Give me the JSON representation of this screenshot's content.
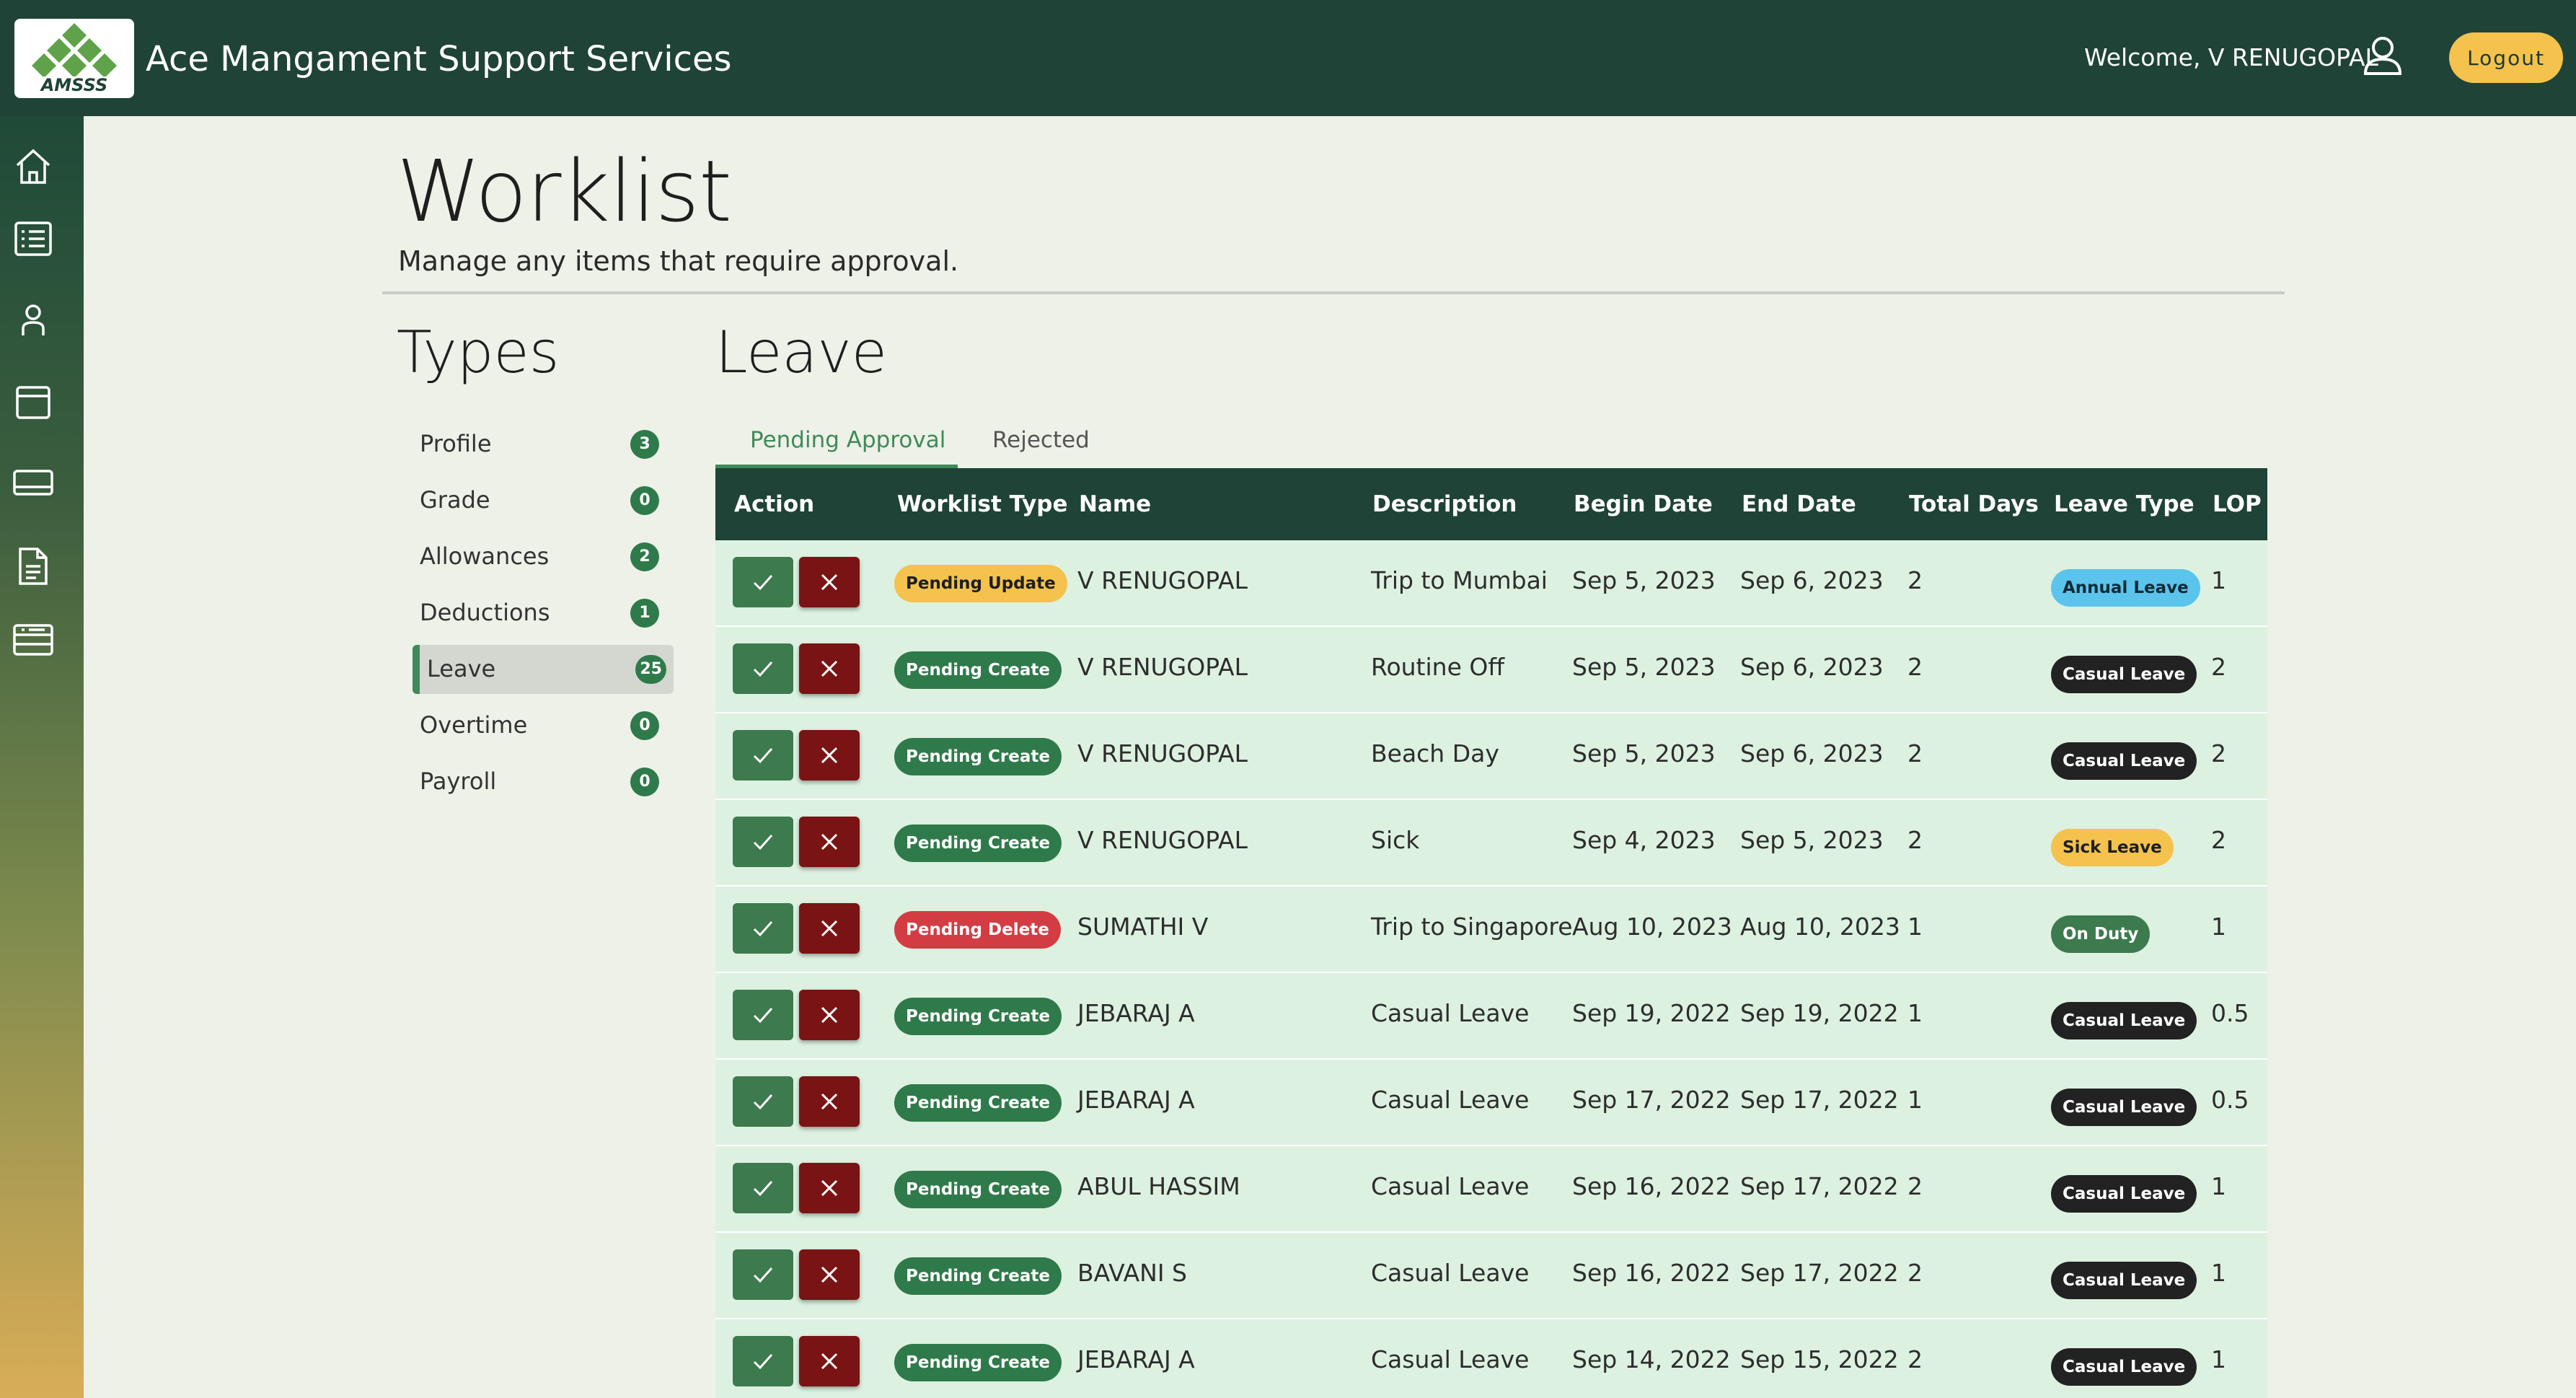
{
  "header": {
    "logo_text": "AMSSS",
    "app_title": "Ace Mangament Support Services",
    "welcome": "Welcome, V RENUGOPAL",
    "logout_label": "Logout"
  },
  "sidebar": {
    "icons": [
      "home-icon",
      "list-icon",
      "user-icon",
      "calendar-icon",
      "card-icon",
      "document-icon",
      "table-icon"
    ]
  },
  "page": {
    "title": "Worklist",
    "subtitle": "Manage any items that require approval."
  },
  "types": {
    "title": "Types",
    "items": [
      {
        "label": "Profile",
        "count": "3",
        "active": false
      },
      {
        "label": "Grade",
        "count": "0",
        "active": false
      },
      {
        "label": "Allowances",
        "count": "2",
        "active": false
      },
      {
        "label": "Deductions",
        "count": "1",
        "active": false
      },
      {
        "label": "Leave",
        "count": "25",
        "active": true
      },
      {
        "label": "Overtime",
        "count": "0",
        "active": false
      },
      {
        "label": "Payroll",
        "count": "0",
        "active": false
      }
    ]
  },
  "section": {
    "title": "Leave",
    "tabs": [
      {
        "label": "Pending Approval",
        "active": true
      },
      {
        "label": "Rejected",
        "active": false
      }
    ]
  },
  "table": {
    "columns": [
      "Action",
      "Worklist Type",
      "Name",
      "Description",
      "Begin Date",
      "End Date",
      "Total Days",
      "Leave Type",
      "LOP D"
    ],
    "rows": [
      {
        "worklist_type": "Pending Update",
        "name": "V RENUGOPAL",
        "description": "Trip to Mumbai",
        "begin": "Sep 5, 2023",
        "end": "Sep 6, 2023",
        "days": "2",
        "leave_type": "Annual Leave",
        "lop": "1"
      },
      {
        "worklist_type": "Pending Create",
        "name": "V RENUGOPAL",
        "description": "Routine Off",
        "begin": "Sep 5, 2023",
        "end": "Sep 6, 2023",
        "days": "2",
        "leave_type": "Casual Leave",
        "lop": "2"
      },
      {
        "worklist_type": "Pending Create",
        "name": "V RENUGOPAL",
        "description": "Beach Day",
        "begin": "Sep 5, 2023",
        "end": "Sep 6, 2023",
        "days": "2",
        "leave_type": "Casual Leave",
        "lop": "2"
      },
      {
        "worklist_type": "Pending Create",
        "name": "V RENUGOPAL",
        "description": "Sick",
        "begin": "Sep 4, 2023",
        "end": "Sep 5, 2023",
        "days": "2",
        "leave_type": "Sick Leave",
        "lop": "2"
      },
      {
        "worklist_type": "Pending Delete",
        "name": "SUMATHI V",
        "description": "Trip to Singapore",
        "begin": "Aug 10, 2023",
        "end": "Aug 10, 2023",
        "days": "1",
        "leave_type": "On Duty",
        "lop": "1"
      },
      {
        "worklist_type": "Pending Create",
        "name": "JEBARAJ A",
        "description": "Casual Leave",
        "begin": "Sep 19, 2022",
        "end": "Sep 19, 2022",
        "days": "1",
        "leave_type": "Casual Leave",
        "lop": "0.5"
      },
      {
        "worklist_type": "Pending Create",
        "name": "JEBARAJ A",
        "description": "Casual Leave",
        "begin": "Sep 17, 2022",
        "end": "Sep 17, 2022",
        "days": "1",
        "leave_type": "Casual Leave",
        "lop": "0.5"
      },
      {
        "worklist_type": "Pending Create",
        "name": "ABUL HASSIM",
        "description": "Casual Leave",
        "begin": "Sep 16, 2022",
        "end": "Sep 17, 2022",
        "days": "2",
        "leave_type": "Casual Leave",
        "lop": "1"
      },
      {
        "worklist_type": "Pending Create",
        "name": "BAVANI S",
        "description": "Casual Leave",
        "begin": "Sep 16, 2022",
        "end": "Sep 17, 2022",
        "days": "2",
        "leave_type": "Casual Leave",
        "lop": "1"
      },
      {
        "worklist_type": "Pending Create",
        "name": "JEBARAJ A",
        "description": "Casual Leave",
        "begin": "Sep 14, 2022",
        "end": "Sep 15, 2022",
        "days": "2",
        "leave_type": "Casual Leave",
        "lop": "1"
      }
    ]
  },
  "colors": {
    "header_bg": "#1f4336",
    "accent_green": "#3e8a58",
    "reject_red": "#7a1414",
    "logout_yellow": "#f4c24d",
    "row_bg": "#ddf1e0",
    "pill_update": "#f4c24d",
    "pill_create": "#2f7a4a",
    "pill_delete": "#d43c44",
    "leave_annual": "#5bc4ec",
    "leave_casual": "#222222",
    "leave_sick": "#f4c24d",
    "leave_onduty": "#3d7a4e"
  }
}
